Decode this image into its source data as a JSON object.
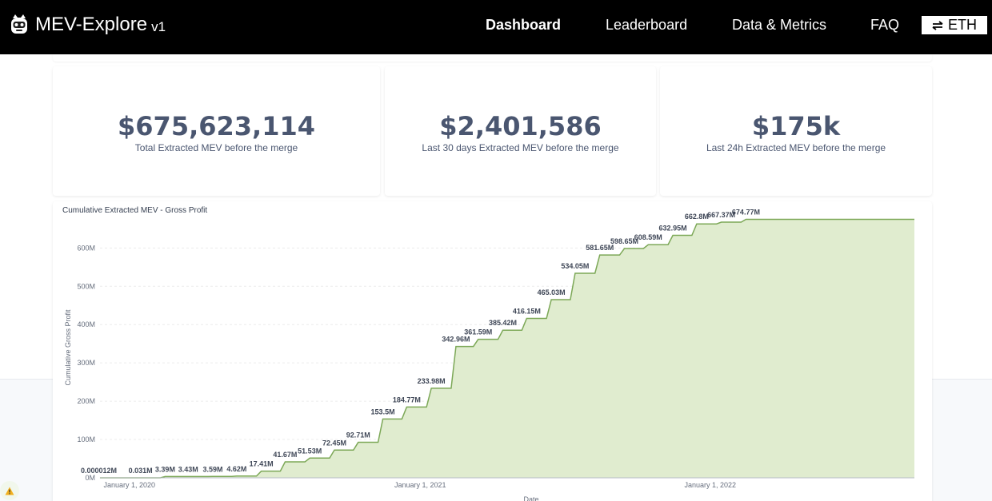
{
  "navbar": {
    "brand_name": "MEV-Explore",
    "brand_version": "v1",
    "links": [
      {
        "label": "Dashboard",
        "active": true
      },
      {
        "label": "Leaderboard",
        "active": false
      },
      {
        "label": "Data & Metrics",
        "active": false
      },
      {
        "label": "FAQ",
        "active": false
      }
    ],
    "currency_button_label": "ETH"
  },
  "stats": [
    {
      "value": "$675,623,114",
      "label": "Total Extracted MEV before the merge"
    },
    {
      "value": "$2,401,586",
      "label": "Last 30 days Extracted MEV before the merge"
    },
    {
      "value": "$175k",
      "label": "Last 24h Extracted MEV before the merge"
    }
  ],
  "colors": {
    "navbar_bg": "#000000",
    "stat_text": "#4a5670",
    "area_fill": "#e0eccf",
    "line": "#7ca857"
  },
  "chart_data": {
    "type": "area",
    "title": "Cumulative Extracted MEV - Gross Profit",
    "xlabel": "Date",
    "ylabel": "Cumulative Gross Profit",
    "x_range": [
      "2019-11-25",
      "2022-09-15"
    ],
    "ylim": [
      0,
      680
    ],
    "y_unit": "M",
    "y_ticks": [
      {
        "value": 0,
        "label": "0M"
      },
      {
        "value": 100,
        "label": "100M"
      },
      {
        "value": 200,
        "label": "200M"
      },
      {
        "value": 300,
        "label": "300M"
      },
      {
        "value": 400,
        "label": "400M"
      },
      {
        "value": 500,
        "label": "500M"
      },
      {
        "value": 600,
        "label": "600M"
      }
    ],
    "x_ticks": [
      {
        "date": "2020-01-01",
        "label": "January 1, 2020"
      },
      {
        "date": "2021-01-01",
        "label": "January 1, 2021"
      },
      {
        "date": "2022-01-01",
        "label": "January 1, 2022"
      }
    ],
    "series": [
      {
        "date": "2019-12-01",
        "value": 1.2e-05,
        "label": "0.000012M"
      },
      {
        "date": "2020-01-15",
        "value": 0.031,
        "label": "0.031M"
      },
      {
        "date": "2020-02-15",
        "value": 3.39,
        "label": "3.39M"
      },
      {
        "date": "2020-03-15",
        "value": 3.43,
        "label": "3.43M"
      },
      {
        "date": "2020-04-15",
        "value": 3.59,
        "label": "3.59M"
      },
      {
        "date": "2020-05-15",
        "value": 4.62,
        "label": "4.62M"
      },
      {
        "date": "2020-06-15",
        "value": 17.41,
        "label": "17.41M"
      },
      {
        "date": "2020-07-15",
        "value": 41.67,
        "label": "41.67M"
      },
      {
        "date": "2020-08-15",
        "value": 51.53,
        "label": "51.53M"
      },
      {
        "date": "2020-09-15",
        "value": 72.45,
        "label": "72.45M"
      },
      {
        "date": "2020-10-15",
        "value": 92.71,
        "label": "92.71M"
      },
      {
        "date": "2020-11-15",
        "value": 153.5,
        "label": "153.5M"
      },
      {
        "date": "2020-12-15",
        "value": 184.77,
        "label": "184.77M"
      },
      {
        "date": "2021-01-15",
        "value": 233.98,
        "label": "233.98M"
      },
      {
        "date": "2021-02-15",
        "value": 342.96,
        "label": "342.96M"
      },
      {
        "date": "2021-03-15",
        "value": 361.59,
        "label": "361.59M"
      },
      {
        "date": "2021-04-15",
        "value": 385.42,
        "label": "385.42M"
      },
      {
        "date": "2021-05-15",
        "value": 416.15,
        "label": "416.15M"
      },
      {
        "date": "2021-06-15",
        "value": 465.03,
        "label": "465.03M"
      },
      {
        "date": "2021-07-15",
        "value": 534.05,
        "label": "534.05M"
      },
      {
        "date": "2021-08-15",
        "value": 581.65,
        "label": "581.65M"
      },
      {
        "date": "2021-09-15",
        "value": 598.65,
        "label": "598.65M"
      },
      {
        "date": "2021-10-15",
        "value": 608.59,
        "label": "608.59M"
      },
      {
        "date": "2021-11-15",
        "value": 632.95,
        "label": "632.95M"
      },
      {
        "date": "2021-12-15",
        "value": 662.8,
        "label": "662.8M"
      },
      {
        "date": "2022-01-15",
        "value": 667.37,
        "label": "667.37M"
      },
      {
        "date": "2022-02-15",
        "value": 674.77,
        "label": "674.77M"
      }
    ]
  }
}
